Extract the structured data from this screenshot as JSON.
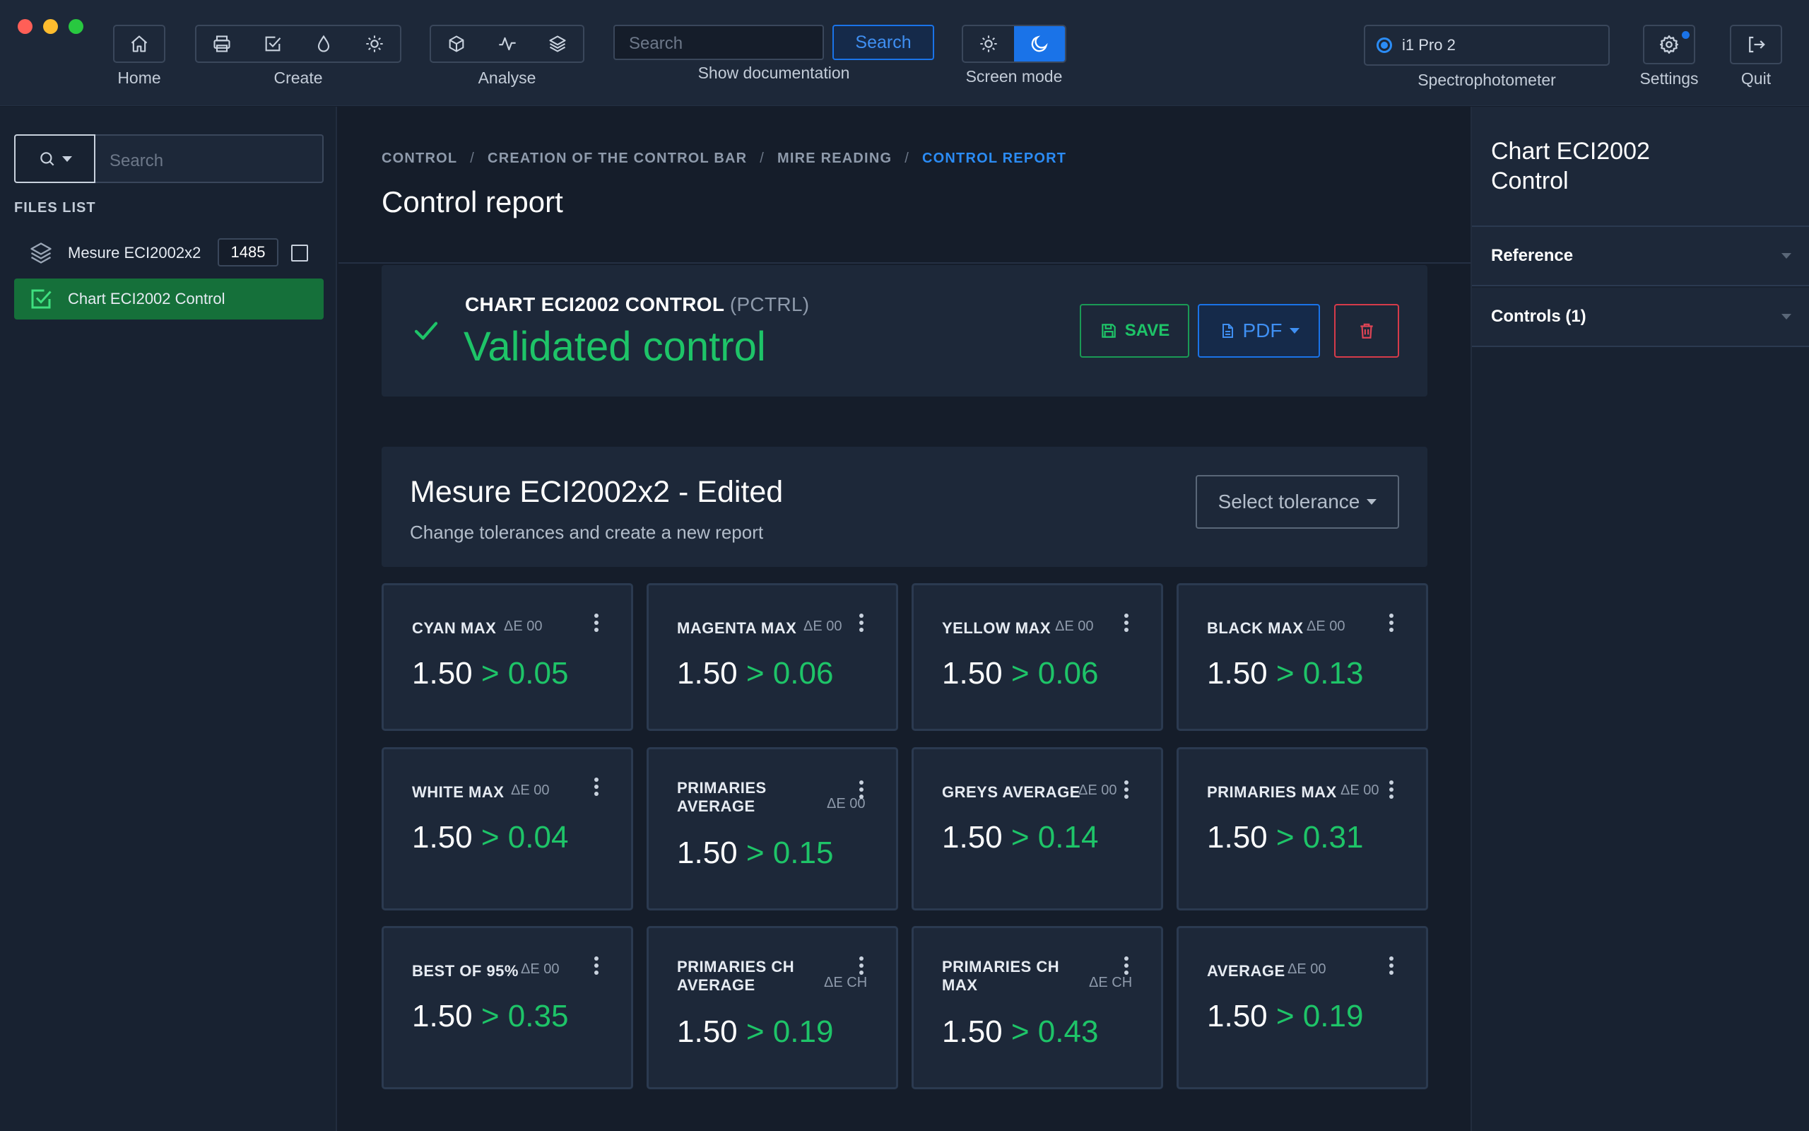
{
  "toolbar": {
    "home_label": "Home",
    "create_label": "Create",
    "analyse_label": "Analyse",
    "search_placeholder": "Search",
    "search_button": "Search",
    "doc_label": "Show documentation",
    "screen_mode_label": "Screen mode",
    "screen_mode_active": "dark",
    "spectro_device": "i1 Pro 2",
    "spectro_label": "Spectrophotometer",
    "settings_label": "Settings",
    "quit_label": "Quit"
  },
  "sidebar": {
    "search_placeholder": "Search",
    "files_title": "FILES LIST",
    "files": [
      {
        "name": "Mesure ECI2002x2",
        "count": "1485",
        "icon": "layers-icon"
      },
      {
        "name": "Chart ECI2002 Control",
        "icon": "checkbox-checked-icon",
        "selected": true
      }
    ]
  },
  "breadcrumb": [
    "CONTROL",
    "CREATION OF THE CONTROL BAR",
    "MIRE READING",
    "CONTROL REPORT"
  ],
  "page_title": "Control report",
  "report": {
    "chart_name": "CHART ECI2002 CONTROL",
    "chart_code": "(PCTRL)",
    "status": "Validated control",
    "save_label": "SAVE",
    "pdf_label": "PDF",
    "status_color": "#1ec468"
  },
  "tolerance": {
    "title": "Mesure ECI2002x2 - Edited",
    "subtitle": "Change tolerances and create a new report",
    "select_label": "Select tolerance"
  },
  "metrics": [
    {
      "label": "CYAN MAX",
      "unit": "ΔE 00",
      "tolerance": "1.50",
      "result": "> 0.05"
    },
    {
      "label": "MAGENTA MAX",
      "unit": "ΔE 00",
      "tolerance": "1.50",
      "result": "> 0.06"
    },
    {
      "label": "YELLOW MAX",
      "unit": "ΔE 00",
      "tolerance": "1.50",
      "result": "> 0.06"
    },
    {
      "label": "BLACK MAX",
      "unit": "ΔE 00",
      "tolerance": "1.50",
      "result": "> 0.13"
    },
    {
      "label": "WHITE MAX",
      "unit": "ΔE 00",
      "tolerance": "1.50",
      "result": "> 0.04"
    },
    {
      "label": "PRIMARIES AVERAGE",
      "unit": "ΔE 00",
      "tolerance": "1.50",
      "result": "> 0.15"
    },
    {
      "label": "GREYS AVERAGE",
      "unit": "ΔE 00",
      "tolerance": "1.50",
      "result": "> 0.14"
    },
    {
      "label": "PRIMARIES MAX",
      "unit": "ΔE 00",
      "tolerance": "1.50",
      "result": "> 0.31"
    },
    {
      "label": "BEST OF 95%",
      "unit": "ΔE 00",
      "tolerance": "1.50",
      "result": "> 0.35"
    },
    {
      "label": "PRIMARIES CH AVERAGE",
      "unit": "ΔE CH",
      "tolerance": "1.50",
      "result": "> 0.19"
    },
    {
      "label": "PRIMARIES CH MAX",
      "unit": "ΔE CH",
      "tolerance": "1.50",
      "result": "> 0.43"
    },
    {
      "label": "AVERAGE",
      "unit": "ΔE 00",
      "tolerance": "1.50",
      "result": "> 0.19"
    }
  ],
  "right_panel": {
    "title": "Chart ECI2002 Control",
    "sections": [
      "Reference",
      "Controls (1)"
    ]
  }
}
